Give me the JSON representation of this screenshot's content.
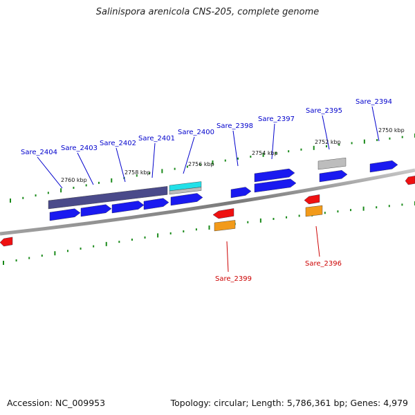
{
  "title": "Salinispora arenicola CNS-205, complete genome",
  "footer": {
    "accession": "Accession: NC_009953",
    "topology": "Topology: circular; Length: 5,786,361 bp; Genes: 4,979"
  },
  "colors": {
    "backbone": "#8a8a8a",
    "tick": "#1a8a1a",
    "forward_gene": "#1a1af0",
    "reverse_gene": "#ee1111",
    "label_forward": "#0000cc",
    "label_reverse": "#cc0000",
    "cog_dark": "#4a4a8a",
    "cog_cyan": "#22e0e8",
    "cog_gray": "#bdbdbd",
    "cog_orange": "#f29a1a"
  },
  "scale_labels": [
    "2760 kbp",
    "2758 kbp",
    "2756 kbp",
    "2754 kbp",
    "2752 kbp",
    "2750 kbp"
  ],
  "gene_labels": [
    {
      "text": "Sare_2404",
      "strand": "forward"
    },
    {
      "text": "Sare_2403",
      "strand": "forward"
    },
    {
      "text": "Sare_2402",
      "strand": "forward"
    },
    {
      "text": "Sare_2401",
      "strand": "forward"
    },
    {
      "text": "Sare_2400",
      "strand": "forward"
    },
    {
      "text": "Sare_2398",
      "strand": "forward"
    },
    {
      "text": "Sare_2397",
      "strand": "forward"
    },
    {
      "text": "Sare_2395",
      "strand": "forward"
    },
    {
      "text": "Sare_2394",
      "strand": "forward"
    },
    {
      "text": "Sare_2399",
      "strand": "reverse"
    },
    {
      "text": "Sare_2396",
      "strand": "reverse"
    }
  ]
}
